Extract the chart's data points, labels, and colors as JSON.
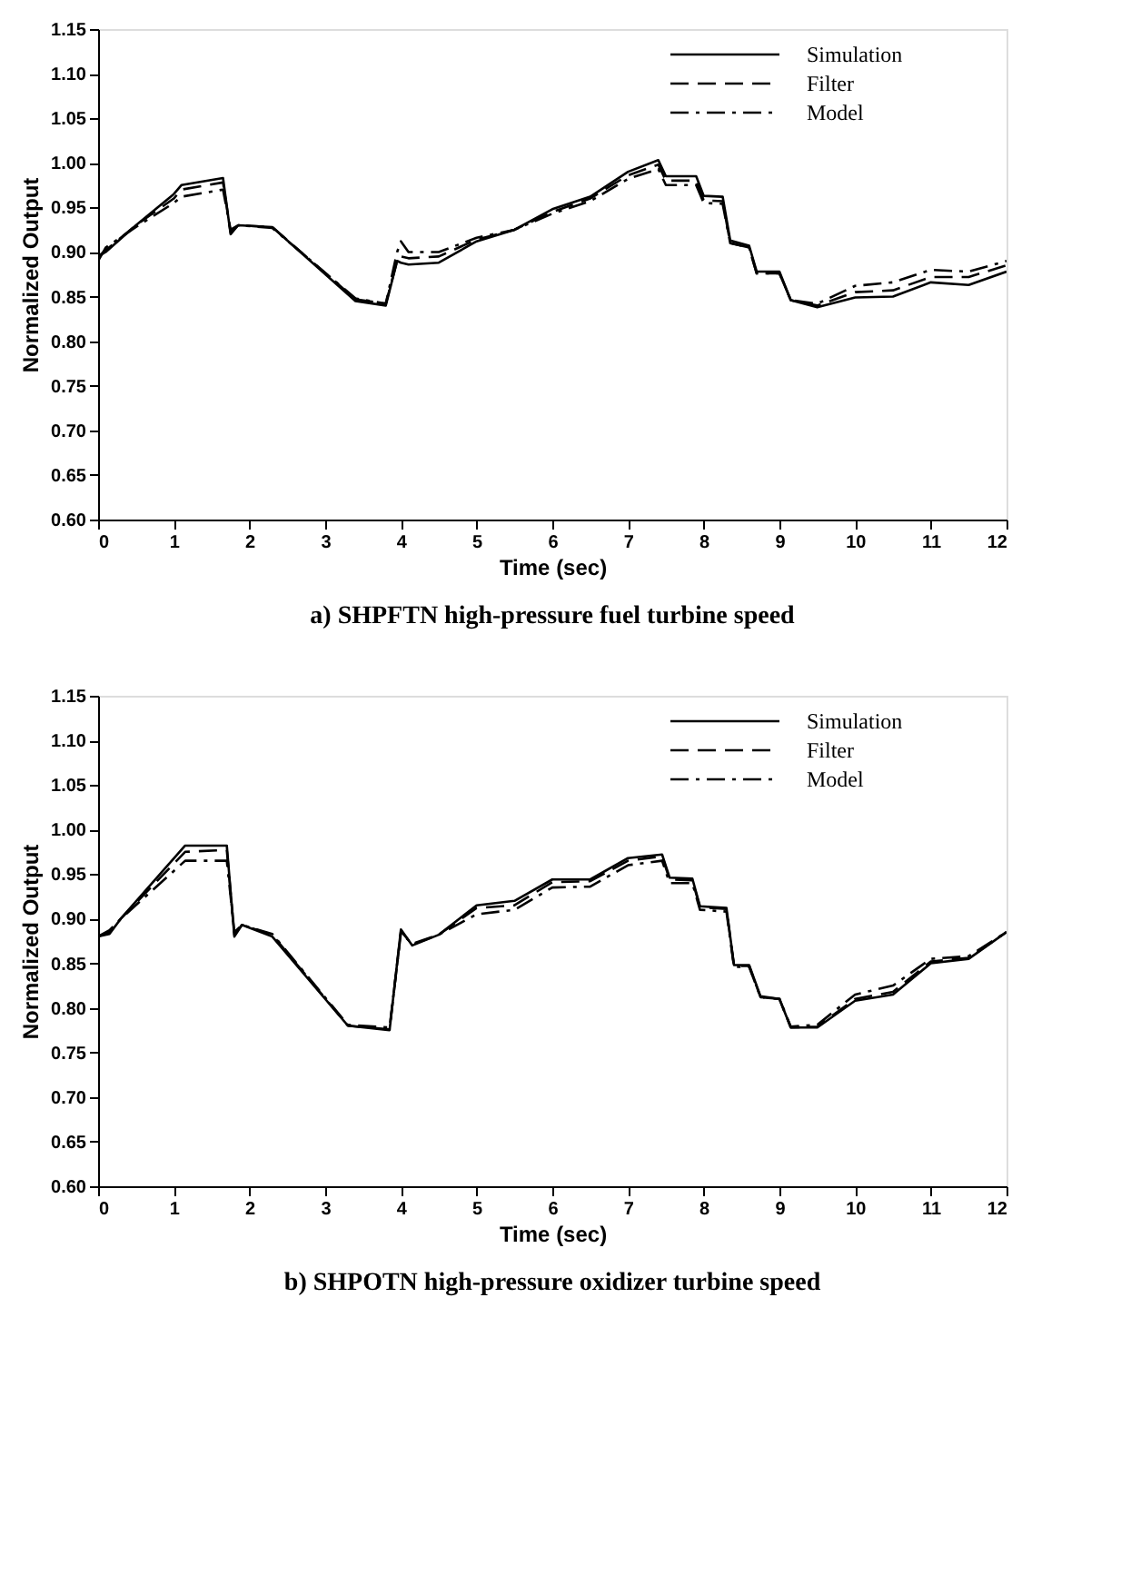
{
  "chart_data": [
    {
      "type": "line",
      "title": "a)  SHPFTN high-pressure fuel turbine speed",
      "xlabel": "Time (sec)",
      "ylabel": "Normalized Output",
      "xlim": [
        0,
        12
      ],
      "ylim": [
        0.6,
        1.15
      ],
      "xticks": [
        0,
        1,
        2,
        3,
        4,
        5,
        6,
        7,
        8,
        9,
        10,
        11,
        12
      ],
      "yticks": [
        {
          "value": 0.6,
          "label": "0.60"
        },
        {
          "value": 0.65,
          "label": "0.65"
        },
        {
          "value": 0.7,
          "label": "0.70"
        },
        {
          "value": 0.75,
          "label": "0.75"
        },
        {
          "value": 0.8,
          "label": "0.80"
        },
        {
          "value": 0.85,
          "label": "0.85"
        },
        {
          "value": 0.9,
          "label": "0.90"
        },
        {
          "value": 0.95,
          "label": "0.95"
        },
        {
          "value": 1.0,
          "label": "1.00"
        },
        {
          "value": 1.05,
          "label": "1.05"
        },
        {
          "value": 1.1,
          "label": "1.10"
        },
        {
          "value": 1.15,
          "label": "1.15"
        }
      ],
      "grid": false,
      "legend": "top right",
      "marker": "none",
      "x": [
        0,
        0.1,
        0.5,
        1.0,
        1.1,
        1.65,
        1.75,
        1.85,
        2.3,
        3.4,
        3.8,
        3.95,
        4.0,
        4.1,
        4.5,
        5,
        5.5,
        6,
        6.5,
        7,
        7.4,
        7.5,
        7.9,
        8.0,
        8.25,
        8.35,
        8.6,
        8.7,
        9.0,
        9.15,
        9.5,
        10,
        10.5,
        11,
        11.5,
        12
      ],
      "series": [
        {
          "name": "Simulation",
          "color": "#000000",
          "line_style": "solid",
          "values": [
            0.895,
            0.9,
            0.93,
            0.965,
            0.975,
            0.983,
            0.92,
            0.93,
            0.928,
            0.845,
            0.84,
            0.89,
            0.888,
            0.886,
            0.888,
            0.912,
            0.925,
            0.948,
            0.962,
            0.99,
            1.003,
            0.985,
            0.985,
            0.963,
            0.962,
            0.913,
            0.907,
            0.878,
            0.878,
            0.846,
            0.838,
            0.849,
            0.85,
            0.866,
            0.863,
            0.878
          ]
        },
        {
          "name": "Filter",
          "color": "#000000",
          "line_style": "dashed",
          "values": [
            0.895,
            0.902,
            0.93,
            0.96,
            0.97,
            0.978,
            0.922,
            0.93,
            0.928,
            0.847,
            0.842,
            0.89,
            0.895,
            0.893,
            0.895,
            0.914,
            0.925,
            0.945,
            0.96,
            0.986,
            0.998,
            0.98,
            0.98,
            0.958,
            0.957,
            0.91,
            0.905,
            0.876,
            0.876,
            0.846,
            0.84,
            0.855,
            0.857,
            0.872,
            0.872,
            0.885
          ]
        },
        {
          "name": "Model",
          "color": "#000000",
          "line_style": "dashdot",
          "values": [
            0.89,
            0.905,
            0.928,
            0.955,
            0.962,
            0.97,
            0.925,
            0.93,
            0.927,
            0.848,
            0.842,
            0.9,
            0.912,
            0.9,
            0.9,
            0.916,
            0.925,
            0.943,
            0.957,
            0.982,
            0.993,
            0.975,
            0.975,
            0.955,
            0.954,
            0.91,
            0.905,
            0.876,
            0.876,
            0.846,
            0.842,
            0.862,
            0.866,
            0.88,
            0.878,
            0.89
          ]
        }
      ]
    },
    {
      "type": "line",
      "title": "b)  SHPOTN high-pressure oxidizer turbine speed",
      "xlabel": "Time (sec)",
      "ylabel": "Normalized Output",
      "xlim": [
        0,
        12
      ],
      "ylim": [
        0.6,
        1.15
      ],
      "xticks": [
        0,
        1,
        2,
        3,
        4,
        5,
        6,
        7,
        8,
        9,
        10,
        11,
        12
      ],
      "yticks": [
        {
          "value": 0.6,
          "label": "0.60"
        },
        {
          "value": 0.65,
          "label": "0.65"
        },
        {
          "value": 0.7,
          "label": "0.70"
        },
        {
          "value": 0.75,
          "label": "0.75"
        },
        {
          "value": 0.8,
          "label": "0.80"
        },
        {
          "value": 0.85,
          "label": "0.85"
        },
        {
          "value": 0.9,
          "label": "0.90"
        },
        {
          "value": 0.95,
          "label": "0.95"
        },
        {
          "value": 1.0,
          "label": "1.00"
        },
        {
          "value": 1.05,
          "label": "1.05"
        },
        {
          "value": 1.1,
          "label": "1.10"
        },
        {
          "value": 1.15,
          "label": "1.15"
        }
      ],
      "grid": false,
      "legend": "top right",
      "marker": "none",
      "x": [
        0,
        0.15,
        0.3,
        1.15,
        1.7,
        1.8,
        1.9,
        2.3,
        3.3,
        3.85,
        4.0,
        4.15,
        4.5,
        5,
        5.5,
        6,
        6.5,
        7,
        7.45,
        7.55,
        7.85,
        7.95,
        8.3,
        8.4,
        8.6,
        8.75,
        9.0,
        9.15,
        9.5,
        10,
        10.5,
        11,
        11.5,
        12
      ],
      "series": [
        {
          "name": "Simulation",
          "color": "#000000",
          "line_style": "solid",
          "values": [
            0.88,
            0.883,
            0.9,
            0.982,
            0.982,
            0.88,
            0.893,
            0.88,
            0.78,
            0.775,
            0.888,
            0.87,
            0.882,
            0.915,
            0.92,
            0.944,
            0.944,
            0.968,
            0.972,
            0.946,
            0.945,
            0.914,
            0.912,
            0.848,
            0.848,
            0.813,
            0.81,
            0.778,
            0.778,
            0.808,
            0.815,
            0.85,
            0.855,
            0.885
          ]
        },
        {
          "name": "Filter",
          "color": "#000000",
          "line_style": "dashed",
          "values": [
            0.88,
            0.885,
            0.9,
            0.975,
            0.977,
            0.882,
            0.893,
            0.882,
            0.78,
            0.776,
            0.886,
            0.871,
            0.882,
            0.912,
            0.915,
            0.941,
            0.942,
            0.965,
            0.97,
            0.944,
            0.943,
            0.913,
            0.911,
            0.847,
            0.847,
            0.812,
            0.81,
            0.778,
            0.779,
            0.81,
            0.818,
            0.852,
            0.856,
            0.885
          ]
        },
        {
          "name": "Model",
          "color": "#000000",
          "line_style": "dashdot",
          "values": [
            0.88,
            0.887,
            0.9,
            0.965,
            0.965,
            0.885,
            0.893,
            0.883,
            0.781,
            0.778,
            0.884,
            0.872,
            0.882,
            0.905,
            0.91,
            0.935,
            0.936,
            0.96,
            0.965,
            0.94,
            0.94,
            0.91,
            0.908,
            0.846,
            0.846,
            0.812,
            0.81,
            0.779,
            0.781,
            0.815,
            0.825,
            0.855,
            0.858,
            0.885
          ]
        }
      ]
    }
  ]
}
